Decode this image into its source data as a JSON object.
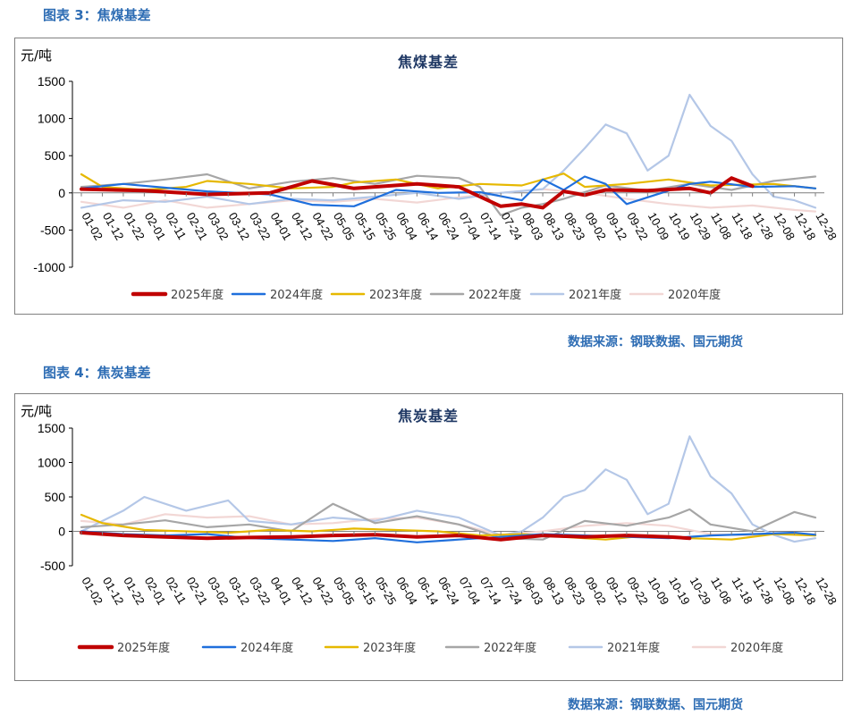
{
  "fig3": {
    "caption": "图表 3：焦煤基差"
  },
  "fig4": {
    "caption": "图表 4：焦炭基差"
  },
  "source3": "数据来源：钢联数据、国元期货",
  "source4": "数据来源：钢联数据、国元期货",
  "chart_data": [
    {
      "type": "line",
      "title": "焦煤基差",
      "ylabel": "元/吨",
      "ylim": [
        -1000,
        1500
      ],
      "yticks": [
        -1000,
        -500,
        0,
        500,
        1000,
        1500
      ],
      "x_ticks": [
        "01-02",
        "01-12",
        "01-22",
        "02-01",
        "02-11",
        "02-21",
        "03-02",
        "03-12",
        "03-22",
        "04-01",
        "04-12",
        "04-22",
        "05-05",
        "05-15",
        "05-25",
        "06-04",
        "06-14",
        "06-24",
        "07-04",
        "07-14",
        "07-24",
        "08-03",
        "08-13",
        "08-23",
        "09-02",
        "09-12",
        "09-22",
        "10-09",
        "10-19",
        "10-29",
        "11-08",
        "11-18",
        "11-28",
        "12-08",
        "12-18",
        "12-28"
      ],
      "series": [
        {
          "name": "2025年度",
          "color": "#c00000",
          "width": 4,
          "points": [
            [
              0,
              50
            ],
            [
              3,
              30
            ],
            [
              6,
              -20
            ],
            [
              9,
              0
            ],
            [
              11,
              160
            ],
            [
              13,
              60
            ],
            [
              16,
              120
            ],
            [
              18,
              80
            ],
            [
              20,
              -180
            ],
            [
              21,
              -150
            ],
            [
              22,
              -200
            ],
            [
              23,
              20
            ],
            [
              24,
              -30
            ],
            [
              25,
              40
            ],
            [
              27,
              30
            ],
            [
              29,
              60
            ],
            [
              30,
              0
            ],
            [
              31,
              200
            ],
            [
              32,
              90
            ]
          ]
        },
        {
          "name": "2024年度",
          "color": "#1f6fdc",
          "width": 2.2,
          "points": [
            [
              0,
              60
            ],
            [
              2,
              120
            ],
            [
              4,
              70
            ],
            [
              6,
              20
            ],
            [
              9,
              -20
            ],
            [
              11,
              -160
            ],
            [
              13,
              -180
            ],
            [
              15,
              40
            ],
            [
              17,
              0
            ],
            [
              19,
              10
            ],
            [
              21,
              -100
            ],
            [
              22,
              180
            ],
            [
              23,
              40
            ],
            [
              24,
              220
            ],
            [
              25,
              120
            ],
            [
              26,
              -150
            ],
            [
              27,
              -60
            ],
            [
              29,
              120
            ],
            [
              30,
              150
            ],
            [
              32,
              80
            ],
            [
              34,
              90
            ],
            [
              35,
              60
            ]
          ]
        },
        {
          "name": "2023年度",
          "color": "#e6b800",
          "width": 2.2,
          "points": [
            [
              0,
              250
            ],
            [
              1,
              80
            ],
            [
              3,
              40
            ],
            [
              5,
              80
            ],
            [
              6,
              160
            ],
            [
              8,
              120
            ],
            [
              10,
              60
            ],
            [
              12,
              80
            ],
            [
              13,
              140
            ],
            [
              15,
              180
            ],
            [
              17,
              60
            ],
            [
              19,
              120
            ],
            [
              21,
              100
            ],
            [
              23,
              260
            ],
            [
              24,
              80
            ],
            [
              26,
              120
            ],
            [
              28,
              180
            ],
            [
              30,
              100
            ],
            [
              33,
              120
            ],
            [
              35,
              60
            ]
          ]
        },
        {
          "name": "2022年度",
          "color": "#a6a6a6",
          "width": 2.2,
          "points": [
            [
              0,
              80
            ],
            [
              2,
              120
            ],
            [
              4,
              180
            ],
            [
              6,
              250
            ],
            [
              8,
              60
            ],
            [
              10,
              150
            ],
            [
              12,
              200
            ],
            [
              14,
              120
            ],
            [
              16,
              230
            ],
            [
              18,
              200
            ],
            [
              19,
              80
            ],
            [
              20,
              -300
            ],
            [
              21,
              -200
            ],
            [
              22,
              -150
            ],
            [
              23,
              -80
            ],
            [
              25,
              100
            ],
            [
              27,
              30
            ],
            [
              29,
              120
            ],
            [
              31,
              40
            ],
            [
              33,
              160
            ],
            [
              35,
              220
            ]
          ]
        },
        {
          "name": "2021年度",
          "color": "#b4c7e7",
          "width": 2.2,
          "points": [
            [
              0,
              -200
            ],
            [
              2,
              -100
            ],
            [
              4,
              -120
            ],
            [
              6,
              -50
            ],
            [
              8,
              -150
            ],
            [
              10,
              -80
            ],
            [
              12,
              -100
            ],
            [
              14,
              -50
            ],
            [
              16,
              0
            ],
            [
              18,
              -80
            ],
            [
              20,
              0
            ],
            [
              22,
              50
            ],
            [
              23,
              300
            ],
            [
              24,
              600
            ],
            [
              25,
              920
            ],
            [
              26,
              800
            ],
            [
              27,
              300
            ],
            [
              28,
              500
            ],
            [
              29,
              1320
            ],
            [
              30,
              900
            ],
            [
              31,
              700
            ],
            [
              32,
              250
            ],
            [
              33,
              -50
            ],
            [
              34,
              -100
            ],
            [
              35,
              -200
            ]
          ]
        },
        {
          "name": "2020年度",
          "color": "#f2d7d5",
          "width": 2.2,
          "points": [
            [
              0,
              -120
            ],
            [
              2,
              -200
            ],
            [
              4,
              -100
            ],
            [
              6,
              -200
            ],
            [
              8,
              -150
            ],
            [
              10,
              -100
            ],
            [
              12,
              -120
            ],
            [
              14,
              -80
            ],
            [
              16,
              -130
            ],
            [
              18,
              -60
            ],
            [
              20,
              0
            ],
            [
              22,
              50
            ],
            [
              24,
              0
            ],
            [
              26,
              -80
            ],
            [
              28,
              -150
            ],
            [
              30,
              -200
            ],
            [
              32,
              -170
            ],
            [
              34,
              -230
            ],
            [
              35,
              -250
            ]
          ]
        }
      ]
    },
    {
      "type": "line",
      "title": "焦炭基差",
      "ylabel": "元/吨",
      "ylim": [
        -500,
        1500
      ],
      "yticks": [
        -500,
        0,
        500,
        1000,
        1500
      ],
      "x_ticks": [
        "01-02",
        "01-12",
        "01-22",
        "02-01",
        "02-11",
        "02-21",
        "03-02",
        "03-12",
        "03-22",
        "04-01",
        "04-12",
        "04-22",
        "05-05",
        "05-15",
        "05-25",
        "06-04",
        "06-14",
        "06-24",
        "07-04",
        "07-14",
        "07-24",
        "08-03",
        "08-13",
        "08-23",
        "09-02",
        "09-12",
        "09-22",
        "10-09",
        "10-19",
        "10-29",
        "11-08",
        "11-18",
        "11-28",
        "12-08",
        "12-18",
        "12-28"
      ],
      "series": [
        {
          "name": "2025年度",
          "color": "#c00000",
          "width": 4,
          "points": [
            [
              0,
              -20
            ],
            [
              2,
              -60
            ],
            [
              4,
              -80
            ],
            [
              6,
              -100
            ],
            [
              8,
              -90
            ],
            [
              10,
              -80
            ],
            [
              12,
              -60
            ],
            [
              14,
              -50
            ],
            [
              16,
              -80
            ],
            [
              18,
              -60
            ],
            [
              20,
              -120
            ],
            [
              22,
              -60
            ],
            [
              24,
              -80
            ],
            [
              26,
              -60
            ],
            [
              28,
              -80
            ],
            [
              29,
              -100
            ]
          ]
        },
        {
          "name": "2024年度",
          "color": "#1f6fdc",
          "width": 2.2,
          "points": [
            [
              0,
              0
            ],
            [
              2,
              -40
            ],
            [
              4,
              -60
            ],
            [
              6,
              -40
            ],
            [
              8,
              -100
            ],
            [
              10,
              -120
            ],
            [
              12,
              -140
            ],
            [
              14,
              -100
            ],
            [
              16,
              -160
            ],
            [
              18,
              -120
            ],
            [
              20,
              -80
            ],
            [
              22,
              -40
            ],
            [
              24,
              -60
            ],
            [
              26,
              -80
            ],
            [
              28,
              -100
            ],
            [
              30,
              -60
            ],
            [
              32,
              -40
            ],
            [
              34,
              -20
            ],
            [
              35,
              -50
            ]
          ]
        },
        {
          "name": "2023年度",
          "color": "#e6b800",
          "width": 2.2,
          "points": [
            [
              0,
              240
            ],
            [
              1,
              120
            ],
            [
              3,
              20
            ],
            [
              5,
              0
            ],
            [
              7,
              -20
            ],
            [
              9,
              20
            ],
            [
              11,
              0
            ],
            [
              13,
              40
            ],
            [
              15,
              20
            ],
            [
              17,
              0
            ],
            [
              19,
              -60
            ],
            [
              21,
              -40
            ],
            [
              23,
              -80
            ],
            [
              25,
              -120
            ],
            [
              27,
              -60
            ],
            [
              29,
              -100
            ],
            [
              31,
              -120
            ],
            [
              33,
              -40
            ],
            [
              35,
              -60
            ]
          ]
        },
        {
          "name": "2022年度",
          "color": "#a6a6a6",
          "width": 2.2,
          "points": [
            [
              0,
              60
            ],
            [
              2,
              100
            ],
            [
              4,
              160
            ],
            [
              6,
              60
            ],
            [
              8,
              100
            ],
            [
              10,
              0
            ],
            [
              12,
              400
            ],
            [
              14,
              120
            ],
            [
              16,
              220
            ],
            [
              18,
              100
            ],
            [
              20,
              -100
            ],
            [
              22,
              -120
            ],
            [
              24,
              150
            ],
            [
              26,
              80
            ],
            [
              28,
              200
            ],
            [
              29,
              320
            ],
            [
              30,
              100
            ],
            [
              32,
              0
            ],
            [
              34,
              280
            ],
            [
              35,
              200
            ]
          ]
        },
        {
          "name": "2021年度",
          "color": "#b4c7e7",
          "width": 2.2,
          "points": [
            [
              0,
              0
            ],
            [
              2,
              300
            ],
            [
              3,
              500
            ],
            [
              5,
              300
            ],
            [
              7,
              450
            ],
            [
              8,
              150
            ],
            [
              10,
              100
            ],
            [
              12,
              200
            ],
            [
              14,
              150
            ],
            [
              16,
              300
            ],
            [
              18,
              200
            ],
            [
              20,
              -60
            ],
            [
              21,
              0
            ],
            [
              22,
              200
            ],
            [
              23,
              500
            ],
            [
              24,
              600
            ],
            [
              25,
              900
            ],
            [
              26,
              750
            ],
            [
              27,
              250
            ],
            [
              28,
              400
            ],
            [
              29,
              1380
            ],
            [
              30,
              800
            ],
            [
              31,
              550
            ],
            [
              32,
              100
            ],
            [
              33,
              -50
            ],
            [
              34,
              -150
            ],
            [
              35,
              -100
            ]
          ]
        },
        {
          "name": "2020年度",
          "color": "#f2d7d5",
          "width": 2.2,
          "points": [
            [
              0,
              150
            ],
            [
              2,
              100
            ],
            [
              4,
              250
            ],
            [
              6,
              200
            ],
            [
              8,
              220
            ],
            [
              10,
              100
            ],
            [
              12,
              120
            ],
            [
              14,
              180
            ],
            [
              16,
              200
            ],
            [
              18,
              100
            ],
            [
              20,
              -50
            ],
            [
              22,
              0
            ],
            [
              24,
              80
            ],
            [
              26,
              120
            ],
            [
              28,
              80
            ],
            [
              30,
              -40
            ],
            [
              32,
              -60
            ],
            [
              34,
              -20
            ],
            [
              35,
              -50
            ]
          ]
        }
      ]
    }
  ]
}
